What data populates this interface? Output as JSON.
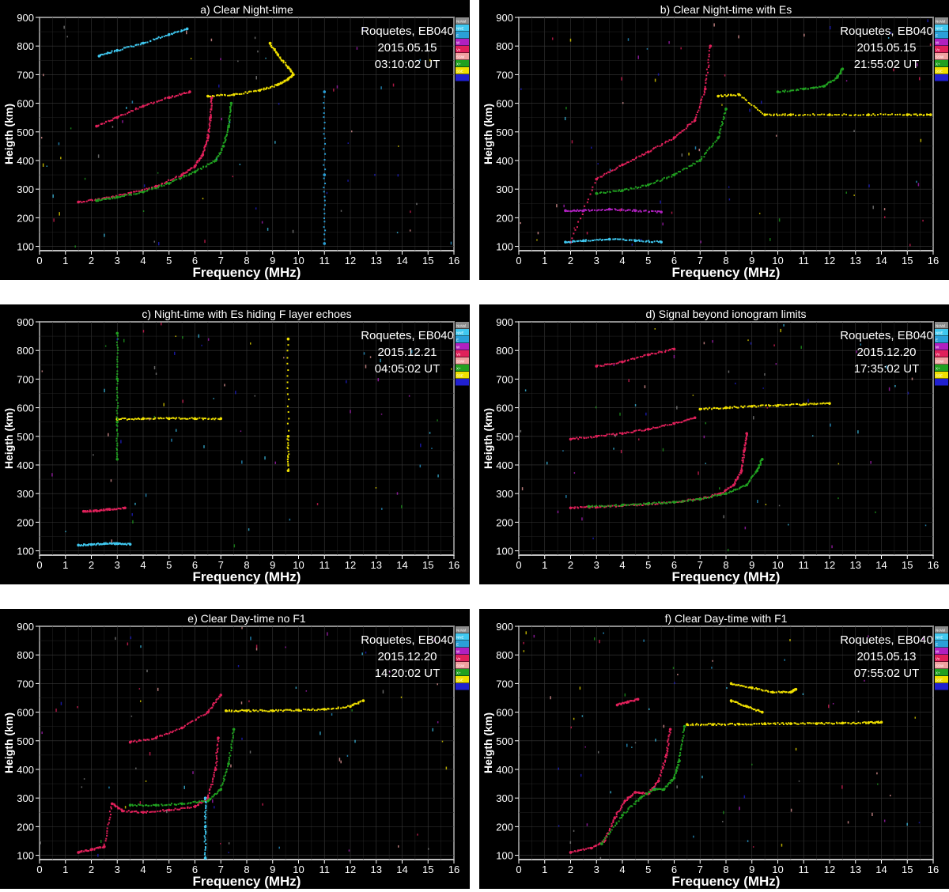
{
  "figure": {
    "axis_xlabel": "Frequency (MHz)",
    "axis_ylabel": "Heigth (km)",
    "legend_entries": [
      "NoVal",
      "NNE",
      "E",
      "W",
      "Vo",
      "SSW",
      "X+",
      "SSE",
      ""
    ],
    "legend_colors": [
      "#8a8a8a",
      "#3fc8f0",
      "#2aa0d8",
      "#b020c0",
      "#e0205a",
      "#f0a0a0",
      "#20a020",
      "#f0e000",
      "#2020d0"
    ]
  },
  "chart_data": [
    {
      "type": "scatter",
      "title": "a) Clear Night-time",
      "station": "Roquetes, EB040",
      "date": "2015.05.15",
      "time": "03:10:02 UT",
      "xlabel": "Frequency (MHz)",
      "ylabel": "Heigth (km)",
      "xlim": [
        0,
        16
      ],
      "ylim": [
        85,
        900
      ],
      "xticks": [
        0,
        1,
        2,
        3,
        4,
        5,
        6,
        7,
        8,
        9,
        10,
        11,
        12,
        13,
        14,
        15,
        16
      ],
      "yticks": [
        100,
        200,
        300,
        400,
        500,
        600,
        700,
        800,
        900
      ],
      "grid": true,
      "legend": "right",
      "series": [
        {
          "name": "Vo",
          "color": "#e0205a",
          "x": [
            1.5,
            2.5,
            3.5,
            4.5,
            5.5,
            6.0,
            6.3,
            6.5,
            6.6,
            6.65
          ],
          "y": [
            255,
            268,
            285,
            310,
            350,
            380,
            420,
            480,
            550,
            620
          ]
        },
        {
          "name": "X+",
          "color": "#20a020",
          "x": [
            2.2,
            3.0,
            4.0,
            5.0,
            6.0,
            6.8,
            7.1,
            7.3,
            7.4
          ],
          "y": [
            260,
            272,
            290,
            320,
            360,
            400,
            450,
            520,
            600
          ]
        },
        {
          "name": "SSE",
          "color": "#f0e000",
          "x": [
            6.5,
            7.5,
            8.5,
            9.2,
            9.6,
            9.8,
            9.6,
            9.2,
            8.9
          ],
          "y": [
            625,
            630,
            645,
            665,
            685,
            700,
            725,
            770,
            810
          ]
        },
        {
          "name": "W",
          "color": "#e0205a",
          "x": [
            2.2,
            3.0,
            4.0,
            5.0,
            5.8
          ],
          "y": [
            520,
            550,
            590,
            620,
            640
          ]
        },
        {
          "name": "NNE",
          "color": "#3fc8f0",
          "x": [
            2.3,
            3.0,
            4.0,
            5.0,
            5.7
          ],
          "y": [
            765,
            785,
            810,
            840,
            860
          ]
        },
        {
          "name": "E",
          "color": "#2aa0d8",
          "x": [
            11.0,
            11.0,
            11.0
          ],
          "y": [
            110,
            350,
            640
          ]
        }
      ]
    },
    {
      "type": "scatter",
      "title": "b) Clear Night-time with Es",
      "station": "Roquetes, EB040",
      "date": "2015.05.15",
      "time": "21:55:02 UT",
      "xlabel": "Frequency (MHz)",
      "ylabel": "Heigth (km)",
      "xlim": [
        0,
        16
      ],
      "ylim": [
        85,
        900
      ],
      "xticks": [
        0,
        1,
        2,
        3,
        4,
        5,
        6,
        7,
        8,
        9,
        10,
        11,
        12,
        13,
        14,
        15,
        16
      ],
      "yticks": [
        100,
        200,
        300,
        400,
        500,
        600,
        700,
        800,
        900
      ],
      "grid": true,
      "legend": "right",
      "series": [
        {
          "name": "Vo",
          "color": "#e0205a",
          "x": [
            2.0,
            3.0,
            4.0,
            5.0,
            6.0,
            6.8,
            7.2,
            7.4
          ],
          "y": [
            115,
            335,
            385,
            430,
            480,
            540,
            650,
            800
          ]
        },
        {
          "name": "X+",
          "color": "#20a020",
          "x": [
            3.0,
            4.0,
            5.0,
            6.0,
            7.0,
            7.7,
            8.0
          ],
          "y": [
            285,
            295,
            315,
            350,
            400,
            480,
            580
          ]
        },
        {
          "name": "SSE",
          "color": "#f0e000",
          "x": [
            7.7,
            8.5,
            9.5,
            10.5,
            12.0,
            13.5,
            15.0,
            15.9
          ],
          "y": [
            625,
            630,
            560,
            560,
            560,
            560,
            560,
            560
          ]
        },
        {
          "name": "NNE",
          "color": "#3fc8f0",
          "x": [
            1.8,
            2.5,
            3.5,
            4.5,
            5.5
          ],
          "y": [
            115,
            120,
            125,
            120,
            115
          ]
        },
        {
          "name": "W",
          "color": "#b020c0",
          "x": [
            1.8,
            2.5,
            3.5,
            4.5,
            5.5
          ],
          "y": [
            225,
            225,
            230,
            225,
            220
          ]
        },
        {
          "name": "X+",
          "color": "#20a020",
          "x": [
            10.0,
            11.0,
            11.8,
            12.3,
            12.5
          ],
          "y": [
            640,
            650,
            660,
            690,
            720
          ]
        }
      ]
    },
    {
      "type": "scatter",
      "title": "c) Night-time with Es hiding F layer echoes",
      "station": "Roquetes, EB040",
      "date": "2015.12.21",
      "time": "04:05:02 UT",
      "xlabel": "Frequency (MHz)",
      "ylabel": "Heigth (km)",
      "xlim": [
        0,
        16
      ],
      "ylim": [
        85,
        900
      ],
      "xticks": [
        0,
        1,
        2,
        3,
        4,
        5,
        6,
        7,
        8,
        9,
        10,
        11,
        12,
        13,
        14,
        15,
        16
      ],
      "yticks": [
        100,
        200,
        300,
        400,
        500,
        600,
        700,
        800,
        900
      ],
      "grid": true,
      "legend": "right",
      "series": [
        {
          "name": "NNE",
          "color": "#3fc8f0",
          "x": [
            1.5,
            2.0,
            2.5,
            3.0,
            3.5
          ],
          "y": [
            120,
            122,
            125,
            125,
            123
          ]
        },
        {
          "name": "Vo",
          "color": "#e0205a",
          "x": [
            1.7,
            2.2,
            2.7,
            3.3
          ],
          "y": [
            238,
            240,
            245,
            250
          ]
        },
        {
          "name": "SSE",
          "color": "#f0e000",
          "x": [
            3.0,
            4.0,
            5.0,
            6.0,
            7.0
          ],
          "y": [
            560,
            562,
            562,
            562,
            562
          ]
        },
        {
          "name": "X+",
          "color": "#20a020",
          "x": [
            3.0,
            3.0,
            3.0,
            3.0
          ],
          "y": [
            420,
            550,
            700,
            860
          ]
        },
        {
          "name": "SSE",
          "color": "#f0e000",
          "x": [
            9.6,
            9.6,
            9.6
          ],
          "y": [
            380,
            500,
            840
          ]
        }
      ]
    },
    {
      "type": "scatter",
      "title": "d) Signal beyond ionogram limits",
      "station": "Roquetes, EB040",
      "date": "2015.12.20",
      "time": "17:35:02 UT",
      "xlabel": "Frequency (MHz)",
      "ylabel": "Heigth (km)",
      "xlim": [
        0,
        16
      ],
      "ylim": [
        85,
        900
      ],
      "xticks": [
        0,
        1,
        2,
        3,
        4,
        5,
        6,
        7,
        8,
        9,
        10,
        11,
        12,
        13,
        14,
        15,
        16
      ],
      "yticks": [
        100,
        200,
        300,
        400,
        500,
        600,
        700,
        800,
        900
      ],
      "grid": true,
      "legend": "right",
      "series": [
        {
          "name": "Vo",
          "color": "#e0205a",
          "x": [
            2.0,
            3.0,
            4.0,
            5.0,
            6.0,
            7.0,
            7.8,
            8.3,
            8.6,
            8.7,
            8.8
          ],
          "y": [
            250,
            253,
            258,
            263,
            270,
            282,
            300,
            330,
            380,
            450,
            510
          ]
        },
        {
          "name": "X+",
          "color": "#20a020",
          "x": [
            2.7,
            4.0,
            5.0,
            6.0,
            7.0,
            8.0,
            8.8,
            9.2,
            9.4
          ],
          "y": [
            255,
            260,
            265,
            270,
            280,
            300,
            330,
            380,
            420
          ]
        },
        {
          "name": "W",
          "color": "#e0205a",
          "x": [
            2.0,
            3.0,
            4.0,
            5.0,
            6.0,
            6.8
          ],
          "y": [
            490,
            500,
            510,
            525,
            545,
            565
          ]
        },
        {
          "name": "SSE",
          "color": "#f0e000",
          "x": [
            7.0,
            8.0,
            9.0,
            10.0,
            11.0,
            12.0
          ],
          "y": [
            595,
            600,
            605,
            608,
            612,
            615
          ]
        },
        {
          "name": "Vo",
          "color": "#e0205a",
          "x": [
            3.0,
            4.0,
            5.0,
            6.0
          ],
          "y": [
            745,
            760,
            785,
            805
          ]
        }
      ]
    },
    {
      "type": "scatter",
      "title": "e) Clear Day-time no F1",
      "station": "Roquetes, EB040",
      "date": "2015.12.20",
      "time": "14:20:02 UT",
      "xlabel": "Frequency (MHz)",
      "ylabel": "Heigth (km)",
      "xlim": [
        0,
        16
      ],
      "ylim": [
        85,
        900
      ],
      "xticks": [
        0,
        1,
        2,
        3,
        4,
        5,
        6,
        7,
        8,
        9,
        10,
        11,
        12,
        13,
        14,
        15,
        16
      ],
      "yticks": [
        100,
        200,
        300,
        400,
        500,
        600,
        700,
        800,
        900
      ],
      "grid": true,
      "legend": "right",
      "series": [
        {
          "name": "Vo",
          "color": "#e0205a",
          "x": [
            1.5,
            2.0,
            2.5,
            2.8,
            3.2,
            4.0,
            5.0,
            6.0,
            6.5,
            6.8,
            6.9
          ],
          "y": [
            110,
            120,
            130,
            280,
            255,
            250,
            258,
            270,
            300,
            400,
            510
          ]
        },
        {
          "name": "X+",
          "color": "#20a020",
          "x": [
            3.5,
            4.5,
            5.5,
            6.5,
            7.0,
            7.3,
            7.5
          ],
          "y": [
            275,
            275,
            280,
            290,
            330,
            420,
            540
          ]
        },
        {
          "name": "W",
          "color": "#e0205a",
          "x": [
            3.5,
            4.5,
            5.5,
            6.5,
            7.0
          ],
          "y": [
            495,
            510,
            545,
            600,
            660
          ]
        },
        {
          "name": "SSE",
          "color": "#f0e000",
          "x": [
            7.2,
            8.0,
            9.0,
            10.0,
            11.0,
            12.0,
            12.5
          ],
          "y": [
            605,
            605,
            605,
            607,
            610,
            620,
            640
          ]
        },
        {
          "name": "NNE",
          "color": "#3fc8f0",
          "x": [
            6.4,
            6.4,
            6.4
          ],
          "y": [
            90,
            200,
            300
          ]
        }
      ]
    },
    {
      "type": "scatter",
      "title": "f) Clear Day-time with F1",
      "station": "Roquetes, EB040",
      "date": "2015.05.13",
      "time": "07:55:02 UT",
      "xlabel": "Frequency (MHz)",
      "ylabel": "Heigth (km)",
      "xlim": [
        0,
        16
      ],
      "ylim": [
        85,
        900
      ],
      "xticks": [
        0,
        1,
        2,
        3,
        4,
        5,
        6,
        7,
        8,
        9,
        10,
        11,
        12,
        13,
        14,
        15,
        16
      ],
      "yticks": [
        100,
        200,
        300,
        400,
        500,
        600,
        700,
        800,
        900
      ],
      "grid": true,
      "legend": "right",
      "series": [
        {
          "name": "Vo",
          "color": "#e0205a",
          "x": [
            2.0,
            2.8,
            3.3,
            3.7,
            4.1,
            4.5,
            5.0,
            5.4,
            5.7,
            5.85
          ],
          "y": [
            110,
            125,
            150,
            230,
            290,
            320,
            315,
            360,
            450,
            540
          ]
        },
        {
          "name": "X+",
          "color": "#20a020",
          "x": [
            3.2,
            4.0,
            4.7,
            5.2,
            5.6,
            6.0,
            6.2,
            6.4
          ],
          "y": [
            140,
            240,
            300,
            330,
            330,
            370,
            430,
            550
          ]
        },
        {
          "name": "SSE",
          "color": "#f0e000",
          "x": [
            6.5,
            7.5,
            8.5,
            9.5,
            10.5,
            11.5,
            12.5,
            13.5,
            14.0
          ],
          "y": [
            557,
            557,
            558,
            560,
            560,
            560,
            562,
            563,
            565
          ]
        },
        {
          "name": "SSE",
          "color": "#f0e000",
          "x": [
            8.2,
            9.0,
            9.8,
            10.5,
            10.7
          ],
          "y": [
            700,
            685,
            670,
            670,
            680
          ]
        },
        {
          "name": "SSE",
          "color": "#f0e000",
          "x": [
            8.2,
            8.8,
            9.4
          ],
          "y": [
            640,
            620,
            600
          ]
        },
        {
          "name": "Vo",
          "color": "#e0205a",
          "x": [
            3.8,
            4.2,
            4.6
          ],
          "y": [
            625,
            635,
            645
          ]
        }
      ]
    }
  ]
}
